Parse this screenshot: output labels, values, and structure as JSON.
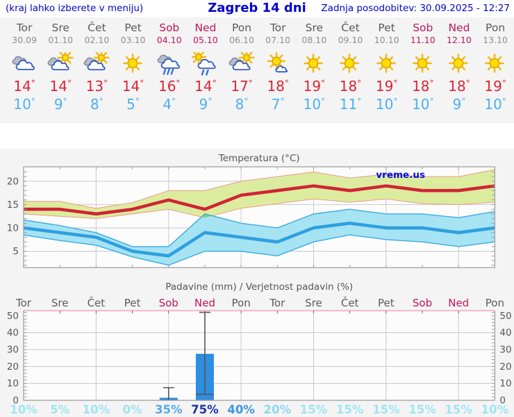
{
  "header": {
    "left_hint": "(kraj lahko izberete v meniju)",
    "title": "Zagreb 14 dni",
    "updated": "Zadnja posodobitev: 30.09.2025 - 12:27"
  },
  "watermark": "vreme.us",
  "deg_symbol": "°",
  "colors": {
    "header_blue": "#0000cd",
    "weekend_crimson": "#c0155c",
    "high_red": "#dd2233",
    "low_blue": "#4ab0ee",
    "panel_gray": "#f4f4f4",
    "plot_bg": "#fcfcfc",
    "grid": "#c9c9c9",
    "axis": "#9a9a9a"
  },
  "days": [
    {
      "name": "Tor",
      "date": "30.09",
      "weekend": false,
      "icon": "cloudy",
      "high": 14,
      "low": 10
    },
    {
      "name": "Sre",
      "date": "01.10",
      "weekend": false,
      "icon": "partly-sunny",
      "high": 14,
      "low": 9
    },
    {
      "name": "Čet",
      "date": "02.10",
      "weekend": false,
      "icon": "partly-sunny",
      "high": 13,
      "low": 8
    },
    {
      "name": "Pet",
      "date": "03.10",
      "weekend": false,
      "icon": "sunny",
      "high": 14,
      "low": 5
    },
    {
      "name": "Sob",
      "date": "04.10",
      "weekend": true,
      "icon": "rain",
      "high": 16,
      "low": 4
    },
    {
      "name": "Ned",
      "date": "05.10",
      "weekend": true,
      "icon": "sun-rain",
      "high": 14,
      "low": 9
    },
    {
      "name": "Pon",
      "date": "06.10",
      "weekend": false,
      "icon": "partly-sunny",
      "high": 17,
      "low": 8
    },
    {
      "name": "Tor",
      "date": "07.10",
      "weekend": false,
      "icon": "mostly-sunny",
      "high": 18,
      "low": 7
    },
    {
      "name": "Sre",
      "date": "08.10",
      "weekend": false,
      "icon": "sunny",
      "high": 19,
      "low": 10
    },
    {
      "name": "Čet",
      "date": "09.10",
      "weekend": false,
      "icon": "sunny",
      "high": 18,
      "low": 11
    },
    {
      "name": "Pet",
      "date": "10.10",
      "weekend": false,
      "icon": "sunny",
      "high": 19,
      "low": 10
    },
    {
      "name": "Sob",
      "date": "11.10",
      "weekend": true,
      "icon": "sunny",
      "high": 18,
      "low": 10
    },
    {
      "name": "Ned",
      "date": "12.10",
      "weekend": true,
      "icon": "sunny",
      "high": 18,
      "low": 9
    },
    {
      "name": "Pon",
      "date": "13.10",
      "weekend": false,
      "icon": "sunny",
      "high": 19,
      "low": 10
    }
  ],
  "chart_data": [
    {
      "type": "line",
      "title": "Temperatura (°C)",
      "categories": [
        "Tor",
        "Sre",
        "Čet",
        "Pet",
        "Sob",
        "Ned",
        "Pon",
        "Tor",
        "Sre",
        "Čet",
        "Pet",
        "Sob",
        "Ned",
        "Pon"
      ],
      "ylim": [
        1.5,
        23.1
      ],
      "yticks": [
        5,
        10,
        15,
        20
      ],
      "grid": true,
      "series": [
        {
          "name": "max",
          "color": "#cf2535",
          "values": [
            14,
            14,
            13,
            14,
            16,
            14,
            17,
            18,
            19,
            18,
            19,
            18,
            18,
            19
          ]
        },
        {
          "name": "max_band_upper",
          "values": [
            15.7,
            15.7,
            14.2,
            15.4,
            18,
            18,
            20,
            21,
            22,
            20.7,
            21.5,
            21,
            21,
            22.5
          ]
        },
        {
          "name": "max_band_lower",
          "values": [
            13,
            12.5,
            12,
            13,
            14,
            12.2,
            14.2,
            15.2,
            16.2,
            15.5,
            16.2,
            15.2,
            15,
            15.5
          ]
        },
        {
          "name": "min",
          "color": "#2f9fe0",
          "values": [
            10,
            9,
            8,
            5,
            4,
            9,
            8,
            7,
            10,
            11,
            10,
            10,
            9,
            10
          ]
        },
        {
          "name": "min_band_upper",
          "values": [
            11.7,
            10.5,
            9,
            6,
            6,
            13,
            11,
            10,
            13,
            14,
            13,
            13,
            12.2,
            13.5
          ]
        },
        {
          "name": "min_band_lower",
          "values": [
            8.5,
            7.3,
            6.3,
            3.8,
            2,
            5,
            5,
            4,
            7,
            8.5,
            7.5,
            7,
            6,
            7
          ]
        }
      ],
      "band_colors": {
        "max_fill": "#dcec9f",
        "max_edge": "#ee9988",
        "min_fill": "#a6e3f3",
        "min_edge": "#3aabdf",
        "overlap_fill": "#85cf80"
      }
    },
    {
      "type": "bar",
      "title": "Padavine (mm) / Verjetnost padavin (%)",
      "categories": [
        "Tor",
        "Sre",
        "Čet",
        "Pet",
        "Sob",
        "Ned",
        "Pon",
        "Tor",
        "Sre",
        "Čet",
        "Pet",
        "Sob",
        "Ned",
        "Pon"
      ],
      "weekend_flags": [
        false,
        false,
        false,
        false,
        true,
        true,
        false,
        false,
        false,
        false,
        false,
        true,
        true,
        false
      ],
      "values_mm": [
        0,
        0,
        0,
        0,
        1.5,
        27.5,
        0,
        0,
        0,
        0,
        0,
        0,
        0,
        0
      ],
      "whiskers": [
        null,
        null,
        null,
        null,
        {
          "high": 7.5
        },
        {
          "median": 3.5,
          "high": 52
        },
        null,
        null,
        null,
        null,
        null,
        null,
        null,
        null
      ],
      "probabilities_pct": [
        10,
        5,
        10,
        0,
        35,
        75,
        40,
        20,
        15,
        15,
        15,
        15,
        15,
        10
      ],
      "probability_labels": [
        "10%",
        "5%",
        "10%",
        "0%",
        "35%",
        "75%",
        "40%",
        "20%",
        "15%",
        "15%",
        "15%",
        "15%",
        "15%",
        "10%"
      ],
      "probability_colors": [
        "#9fe4f4",
        "#9fe4f4",
        "#9fe4f4",
        "#9fe4f4",
        "#54a9e6",
        "#2231a8",
        "#3e96dd",
        "#8bd9f0",
        "#9fe4f4",
        "#9fe4f4",
        "#9fe4f4",
        "#9fe4f4",
        "#9fe4f4",
        "#9fe4f4"
      ],
      "ylim": [
        0,
        53
      ],
      "yticks": [
        0,
        10,
        20,
        30,
        40,
        50
      ],
      "bar_color": "#2e8ee0",
      "whisker_color": "#555555",
      "top_border_color": "#f0a8bc",
      "top_tick_color": "#dd3344"
    }
  ]
}
